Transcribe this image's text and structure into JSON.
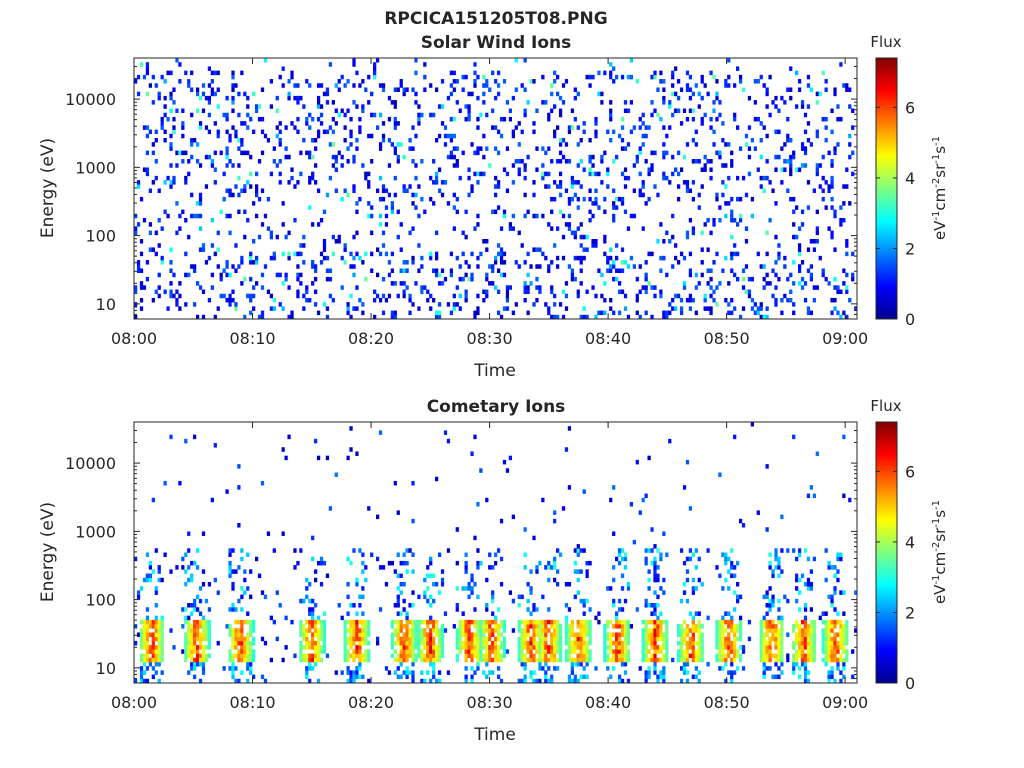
{
  "figure_title": "RPCICA151205T08.PNG",
  "colorbar": {
    "label": "Flux",
    "unit_label": "eV-1cm-2sr-1s-1",
    "ticks": [
      0,
      2,
      4,
      6
    ],
    "range": [
      0,
      7.4
    ],
    "colormap": "jet"
  },
  "chart_data": [
    {
      "type": "heatmap",
      "title": "Solar Wind Ions",
      "xlabel": "Time",
      "ylabel": "Energy (eV)",
      "y_scale": "log",
      "ylim": [
        6,
        40000
      ],
      "xlim": [
        "08:00",
        "09:01"
      ],
      "x_ticks": [
        "08:00",
        "08:10",
        "08:20",
        "08:30",
        "08:40",
        "08:50",
        "09:00"
      ],
      "y_ticks": [
        10,
        100,
        1000,
        10000
      ],
      "y_tick_labels": [
        "10",
        "100",
        "1000",
        "10000"
      ],
      "description_values": {
        "dominant_flux_range": [
          0.5,
          1.5
        ],
        "occasional_flux_max": 3.5,
        "low_energy_band_eV": [
          6,
          60
        ]
      }
    },
    {
      "type": "heatmap",
      "title": "Cometary Ions",
      "xlabel": "Time",
      "ylabel": "Energy (eV)",
      "y_scale": "log",
      "ylim": [
        6,
        40000
      ],
      "xlim": [
        "08:00",
        "09:01"
      ],
      "x_ticks": [
        "08:00",
        "08:10",
        "08:20",
        "08:30",
        "08:40",
        "08:50",
        "09:00"
      ],
      "y_ticks": [
        10,
        100,
        1000,
        10000
      ],
      "y_tick_labels": [
        "10",
        "100",
        "1000",
        "10000"
      ],
      "description_values": {
        "peak_band_energy_eV": [
          14,
          45
        ],
        "peak_flux": 6.5,
        "burst_times_min": [
          1.5,
          5.3,
          9.0,
          15.0,
          18.8,
          22.8,
          25.0,
          28.3,
          30.2,
          33.5,
          35.0,
          37.5,
          40.8,
          44.0,
          47.0,
          50.2,
          53.8,
          56.5,
          59.2
        ]
      }
    }
  ]
}
